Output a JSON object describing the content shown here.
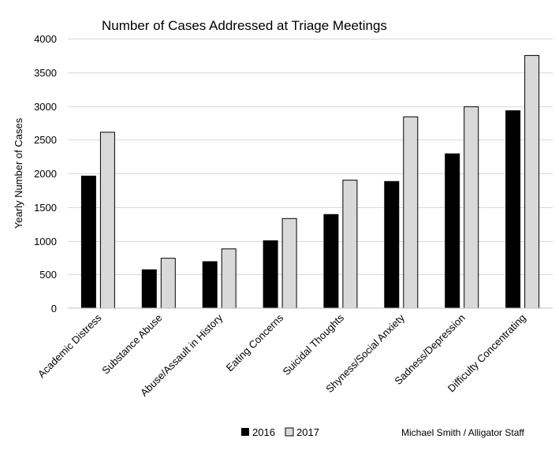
{
  "chart_data": {
    "type": "bar",
    "title": "Number of Cases Addressed at Triage Meetings",
    "xlabel": "",
    "ylabel": "Yearly Number of Cases",
    "ylim": [
      0,
      4000
    ],
    "yticks": [
      0,
      500,
      1000,
      1500,
      2000,
      2500,
      3000,
      3500,
      4000
    ],
    "grid": true,
    "legend_position": "bottom",
    "categories": [
      "Academic Distress",
      "Substance Abuse",
      "Abuse/Assault in History",
      "Eating Concerns",
      "Suicidal Thoughts",
      "Shyness/Social Anxiety",
      "Sadness/Depression",
      "Difficulty Concentrating"
    ],
    "series": [
      {
        "name": "2016",
        "color": "#000000",
        "values": [
          1960,
          570,
          690,
          1000,
          1390,
          1880,
          2290,
          2930
        ]
      },
      {
        "name": "2017",
        "color": "#d9d9d9",
        "values": [
          2610,
          740,
          880,
          1330,
          1900,
          2840,
          2990,
          3750
        ]
      }
    ]
  },
  "credit": "Michael Smith / Alligator Staff"
}
